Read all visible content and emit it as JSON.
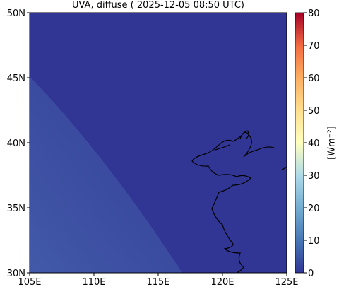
{
  "map": {
    "title": "UVA, diffuse ( 2025-12-05 08:50 UTC)",
    "xlim": [
      105,
      125
    ],
    "ylim": [
      30,
      50
    ],
    "xticks": [
      {
        "value": 105,
        "label": "105E"
      },
      {
        "value": 110,
        "label": "110E"
      },
      {
        "value": 115,
        "label": "115E"
      },
      {
        "value": 120,
        "label": "120E"
      },
      {
        "value": 125,
        "label": "125E"
      }
    ],
    "yticks": [
      {
        "value": 30,
        "label": "30N"
      },
      {
        "value": 35,
        "label": "35N"
      },
      {
        "value": 40,
        "label": "40N"
      },
      {
        "value": 45,
        "label": "45N"
      },
      {
        "value": 50,
        "label": "50N"
      }
    ],
    "colorbar": {
      "label": "[Wm⁻²]",
      "lim": [
        0,
        80
      ],
      "ticks": [
        0,
        10,
        20,
        30,
        40,
        50,
        60,
        70,
        80
      ]
    }
  }
}
